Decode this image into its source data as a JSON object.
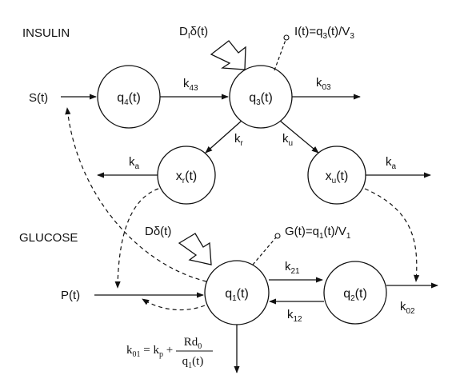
{
  "sections": {
    "insulin": "INSULIN",
    "glucose": "GLUCOSE"
  },
  "nodes": {
    "q4": {
      "base": "q",
      "sub": "4",
      "arg": "(t)"
    },
    "q3": {
      "base": "q",
      "sub": "3",
      "arg": "(t)"
    },
    "xr": {
      "base": "x",
      "sub": "r",
      "arg": "(t)"
    },
    "xu": {
      "base": "x",
      "sub": "u",
      "arg": "(t)"
    },
    "q1": {
      "base": "q",
      "sub": "1",
      "arg": "(t)"
    },
    "q2": {
      "base": "q",
      "sub": "2",
      "arg": "(t)"
    }
  },
  "rates": {
    "k43": {
      "base": "k",
      "sub": "43"
    },
    "k03": {
      "base": "k",
      "sub": "03"
    },
    "kr": {
      "base": "k",
      "sub": "r"
    },
    "ku": {
      "base": "k",
      "sub": "u"
    },
    "ka_left": {
      "base": "k",
      "sub": "a"
    },
    "ka_right": {
      "base": "k",
      "sub": "a"
    },
    "k21": {
      "base": "k",
      "sub": "21"
    },
    "k12": {
      "base": "k",
      "sub": "12"
    },
    "k02": {
      "base": "k",
      "sub": "02"
    }
  },
  "inputs": {
    "S": "S(t)",
    "P": "P(t)",
    "DI": {
      "base": "D",
      "sub": "I",
      "rest": "δ(t)"
    },
    "D": "Dδ(t)"
  },
  "observations": {
    "insulin": {
      "pre": "I(t)=q",
      "sub1": "3",
      "mid": "(t)/V",
      "sub2": "3"
    },
    "glucose": {
      "pre": "G(t)=q",
      "sub1": "1",
      "mid": "(t)/V",
      "sub2": "1"
    }
  },
  "equation": {
    "lhs_base": "k",
    "lhs_sub": "01",
    "eq": " = ",
    "kp_base": "k",
    "kp_sub": "p",
    "plus": " + ",
    "num_base": "Rd",
    "num_sub": "0",
    "den_base": "q",
    "den_sub": "1",
    "den_arg": "(t)"
  }
}
